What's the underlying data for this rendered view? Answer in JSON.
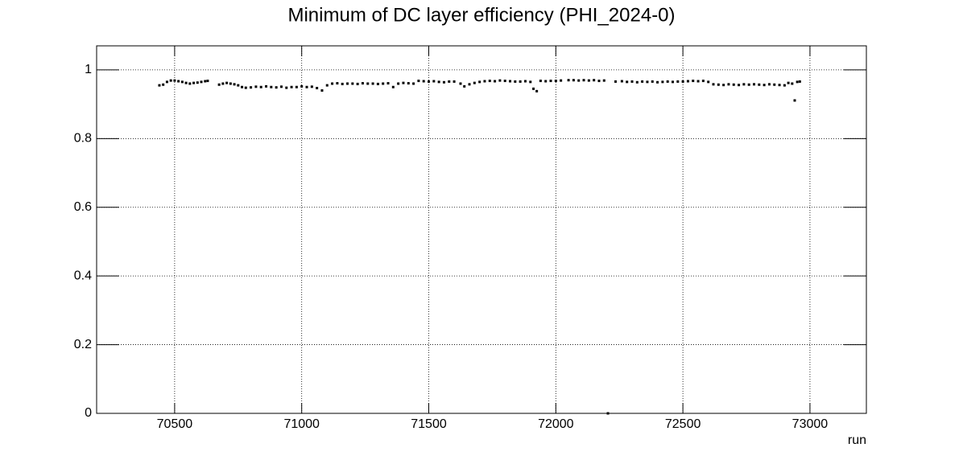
{
  "chart_data": {
    "type": "scatter",
    "title": "Minimum of DC layer efficiency (PHI_2024-0)",
    "x_label": "run",
    "color": "#000000",
    "x": [
      70440,
      70455,
      70470,
      70485,
      70500,
      70515,
      70530,
      70545,
      70560,
      70575,
      70590,
      70605,
      70620,
      70630,
      70675,
      70690,
      70705,
      70720,
      70735,
      70750,
      70765,
      70780,
      70800,
      70820,
      70840,
      70860,
      70880,
      70900,
      70920,
      70940,
      70960,
      70980,
      71000,
      71020,
      71040,
      71060,
      71080,
      71100,
      71120,
      71140,
      71160,
      71180,
      71200,
      71220,
      71240,
      71260,
      71280,
      71300,
      71320,
      71340,
      71360,
      71380,
      71400,
      71420,
      71440,
      71460,
      71480,
      71500,
      71520,
      71540,
      71560,
      71580,
      71600,
      71625,
      71640,
      71660,
      71680,
      71700,
      71720,
      71740,
      71760,
      71780,
      71800,
      71820,
      71840,
      71860,
      71880,
      71900,
      71912,
      71925,
      71940,
      71960,
      71980,
      72000,
      72020,
      72050,
      72070,
      72090,
      72110,
      72130,
      72150,
      72170,
      72190,
      72205,
      72235,
      72260,
      72280,
      72300,
      72320,
      72340,
      72360,
      72380,
      72400,
      72420,
      72440,
      72460,
      72480,
      72500,
      72520,
      72540,
      72560,
      72580,
      72600,
      72620,
      72640,
      72660,
      72680,
      72700,
      72720,
      72740,
      72760,
      72780,
      72800,
      72820,
      72840,
      72860,
      72880,
      72900,
      72915,
      72930,
      72940,
      72950,
      72960
    ],
    "values": [
      0.955,
      0.957,
      0.965,
      0.969,
      0.969,
      0.967,
      0.965,
      0.962,
      0.96,
      0.962,
      0.963,
      0.965,
      0.967,
      0.968,
      0.957,
      0.96,
      0.962,
      0.96,
      0.958,
      0.955,
      0.95,
      0.948,
      0.949,
      0.951,
      0.95,
      0.952,
      0.95,
      0.949,
      0.951,
      0.948,
      0.95,
      0.95,
      0.952,
      0.95,
      0.951,
      0.947,
      0.94,
      0.955,
      0.96,
      0.961,
      0.959,
      0.96,
      0.96,
      0.959,
      0.961,
      0.96,
      0.96,
      0.959,
      0.96,
      0.961,
      0.95,
      0.96,
      0.962,
      0.961,
      0.96,
      0.968,
      0.967,
      0.966,
      0.967,
      0.965,
      0.964,
      0.966,
      0.966,
      0.96,
      0.952,
      0.958,
      0.962,
      0.965,
      0.967,
      0.968,
      0.967,
      0.969,
      0.968,
      0.967,
      0.966,
      0.966,
      0.967,
      0.965,
      0.945,
      0.938,
      0.968,
      0.967,
      0.968,
      0.968,
      0.969,
      0.97,
      0.97,
      0.969,
      0.97,
      0.969,
      0.97,
      0.968,
      0.969,
      0,
      0.966,
      0.967,
      0.965,
      0.966,
      0.964,
      0.966,
      0.965,
      0.966,
      0.964,
      0.965,
      0.966,
      0.965,
      0.966,
      0.966,
      0.967,
      0.968,
      0.967,
      0.968,
      0.965,
      0.958,
      0.957,
      0.956,
      0.958,
      0.957,
      0.956,
      0.958,
      0.957,
      0.958,
      0.957,
      0.956,
      0.958,
      0.957,
      0.956,
      0.955,
      0.962,
      0.96,
      0.911,
      0.965,
      0.966
    ],
    "xlim": [
      70193,
      73222
    ],
    "ylim": [
      0,
      1.07
    ],
    "xticks": [
      70500,
      71000,
      71500,
      72000,
      72500,
      73000
    ],
    "yticks": [
      0,
      0.2,
      0.4,
      0.6,
      0.8,
      1
    ],
    "grid": true
  }
}
